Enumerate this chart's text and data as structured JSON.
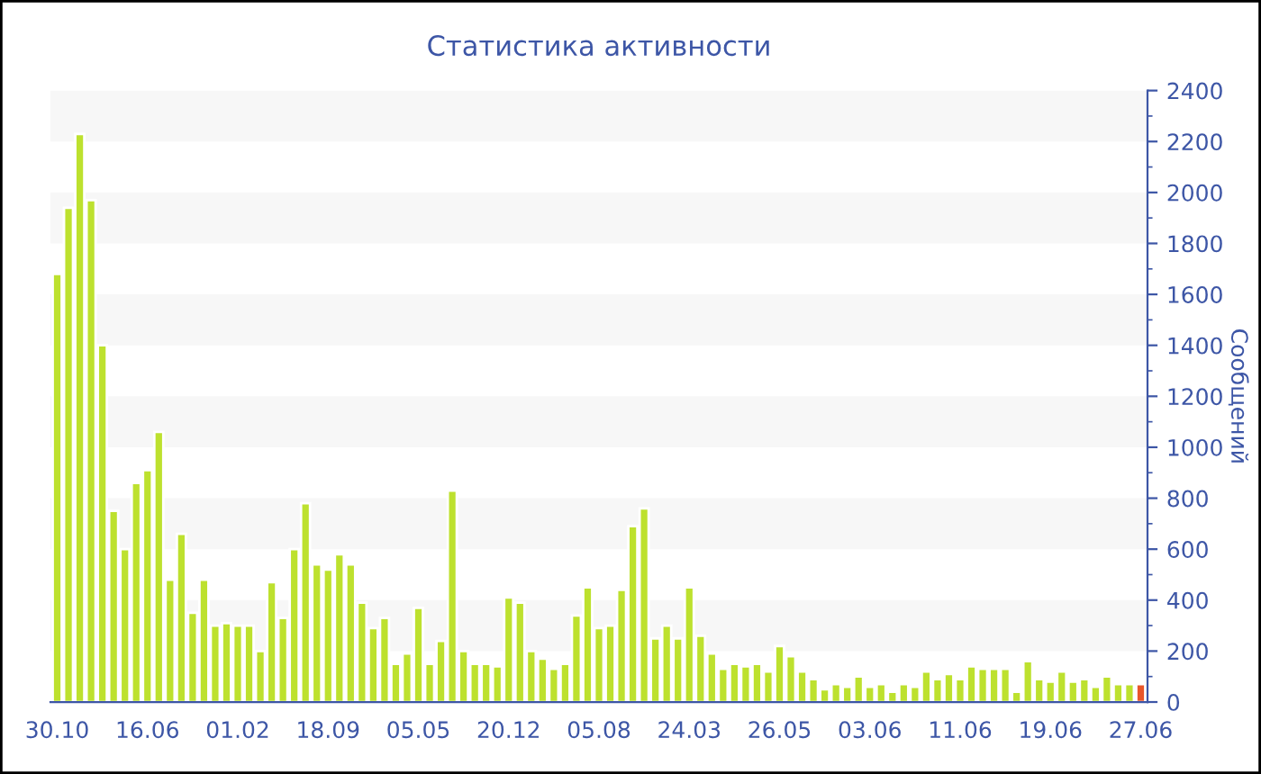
{
  "chart_data": {
    "type": "bar",
    "title": "Статистика активности",
    "ylabel": "Сообщений",
    "categories": [
      "30.10",
      null,
      null,
      null,
      null,
      null,
      null,
      null,
      "16.06",
      null,
      null,
      null,
      null,
      null,
      null,
      null,
      "01.02",
      null,
      null,
      null,
      null,
      null,
      null,
      null,
      "18.09",
      null,
      null,
      null,
      null,
      null,
      null,
      null,
      "05.05",
      null,
      null,
      null,
      null,
      null,
      null,
      null,
      "20.12",
      null,
      null,
      null,
      null,
      null,
      null,
      null,
      "05.08",
      null,
      null,
      null,
      null,
      null,
      null,
      null,
      "24.03",
      null,
      null,
      null,
      null,
      null,
      null,
      null,
      "26.05",
      null,
      null,
      null,
      null,
      null,
      null,
      null,
      "03.06",
      null,
      null,
      null,
      null,
      null,
      null,
      null,
      "11.06",
      null,
      null,
      null,
      null,
      null,
      null,
      null,
      "19.06",
      null,
      null,
      null,
      null,
      null,
      null,
      null,
      "27.06"
    ],
    "values": [
      1680,
      1940,
      2230,
      1970,
      1400,
      750,
      600,
      860,
      910,
      1060,
      480,
      660,
      350,
      480,
      300,
      310,
      300,
      300,
      200,
      470,
      330,
      600,
      780,
      540,
      520,
      580,
      540,
      390,
      290,
      330,
      150,
      190,
      370,
      150,
      240,
      830,
      200,
      150,
      150,
      140,
      410,
      390,
      200,
      170,
      130,
      150,
      340,
      450,
      290,
      300,
      440,
      690,
      760,
      250,
      300,
      250,
      450,
      260,
      190,
      130,
      150,
      140,
      150,
      120,
      220,
      180,
      120,
      90,
      50,
      70,
      60,
      100,
      60,
      70,
      40,
      70,
      60,
      120,
      90,
      110,
      90,
      140,
      130,
      130,
      130,
      40,
      160,
      90,
      80,
      120,
      80,
      90,
      60,
      100,
      70,
      70,
      70
    ],
    "colors": [
      "#bde12e",
      "#bde12e",
      "#bde12e",
      "#bde12e",
      "#bde12e",
      "#bde12e",
      "#bde12e",
      "#bde12e",
      "#bde12e",
      "#bde12e",
      "#bde12e",
      "#bde12e",
      "#bde12e",
      "#bde12e",
      "#bde12e",
      "#bde12e",
      "#bde12e",
      "#bde12e",
      "#bde12e",
      "#bde12e",
      "#bde12e",
      "#bde12e",
      "#bde12e",
      "#bde12e",
      "#bde12e",
      "#bde12e",
      "#bde12e",
      "#bde12e",
      "#bde12e",
      "#bde12e",
      "#bde12e",
      "#bde12e",
      "#bde12e",
      "#bde12e",
      "#bde12e",
      "#bde12e",
      "#bde12e",
      "#bde12e",
      "#bde12e",
      "#bde12e",
      "#bde12e",
      "#bde12e",
      "#bde12e",
      "#bde12e",
      "#bde12e",
      "#bde12e",
      "#bde12e",
      "#bde12e",
      "#bde12e",
      "#bde12e",
      "#bde12e",
      "#bde12e",
      "#bde12e",
      "#bde12e",
      "#bde12e",
      "#bde12e",
      "#bde12e",
      "#bde12e",
      "#bde12e",
      "#bde12e",
      "#bde12e",
      "#bde12e",
      "#bde12e",
      "#bde12e",
      "#bde12e",
      "#bde12e",
      "#bde12e",
      "#bde12e",
      "#bde12e",
      "#bde12e",
      "#bde12e",
      "#bde12e",
      "#bde12e",
      "#bde12e",
      "#bde12e",
      "#bde12e",
      "#bde12e",
      "#bde12e",
      "#bde12e",
      "#bde12e",
      "#bde12e",
      "#bde12e",
      "#bde12e",
      "#bde12e",
      "#bde12e",
      "#bde12e",
      "#bde12e",
      "#bde12e",
      "#bde12e",
      "#bde12e",
      "#bde12e",
      "#bde12e",
      "#bde12e",
      "#bde12e",
      "#bde12e",
      "#bde12e",
      "#e8562a"
    ],
    "ylim": [
      0,
      2400
    ],
    "yticks": [
      0,
      200,
      400,
      600,
      800,
      1000,
      1200,
      1400,
      1600,
      1800,
      2000,
      2200,
      2400
    ],
    "bands": [
      {
        "axis": "y",
        "from": 200,
        "to": 400,
        "color": "#f7f7f7"
      },
      {
        "axis": "y",
        "from": 600,
        "to": 800,
        "color": "#f7f7f7"
      },
      {
        "axis": "y",
        "from": 1000,
        "to": 1200,
        "color": "#f7f7f7"
      },
      {
        "axis": "y",
        "from": 1400,
        "to": 1600,
        "color": "#f7f7f7"
      },
      {
        "axis": "y",
        "from": 1800,
        "to": 2000,
        "color": "#f7f7f7"
      },
      {
        "axis": "y",
        "from": 2200,
        "to": 2400,
        "color": "#f7f7f7"
      }
    ],
    "grid": false
  }
}
